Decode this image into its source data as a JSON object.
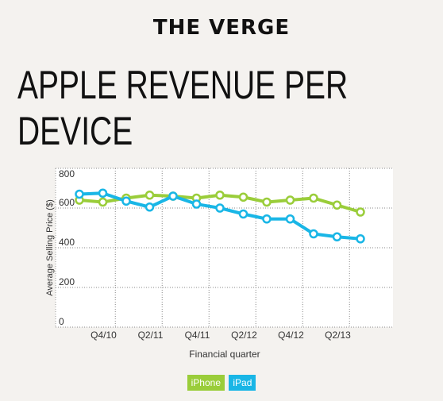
{
  "header": {
    "logo_text": "THE VERGE"
  },
  "headline": {
    "line1": "APPLE REVENUE PER",
    "line2": "DEVICE"
  },
  "colors": {
    "iphone": "#9acd3a",
    "ipad": "#19b6e6",
    "background": "#f4f2ef",
    "plot_bg": "#ffffff"
  },
  "legend": {
    "iphone": "iPhone",
    "ipad": "iPad"
  },
  "chart_data": {
    "type": "line",
    "title": "",
    "xlabel": "Financial quarter",
    "ylabel": "Average Selling Price ($)",
    "ylim": [
      0,
      800
    ],
    "y_ticks": [
      "0",
      "200",
      "400",
      "600",
      "800"
    ],
    "x_tick_labels": [
      {
        "label": "Q4/10",
        "index": 1
      },
      {
        "label": "Q2/11",
        "index": 3
      },
      {
        "label": "Q4/11",
        "index": 5
      },
      {
        "label": "Q2/12",
        "index": 7
      },
      {
        "label": "Q4/12",
        "index": 9
      },
      {
        "label": "Q2/13",
        "index": 11
      }
    ],
    "grid": true,
    "series": [
      {
        "name": "iPhone",
        "color": "#9acd3a",
        "values": [
          640,
          630,
          650,
          665,
          660,
          650,
          665,
          655,
          630,
          640,
          650,
          615,
          580
        ]
      },
      {
        "name": "iPad",
        "color": "#19b6e6",
        "values": [
          670,
          675,
          635,
          605,
          660,
          620,
          600,
          570,
          545,
          545,
          470,
          455,
          445
        ]
      }
    ]
  }
}
